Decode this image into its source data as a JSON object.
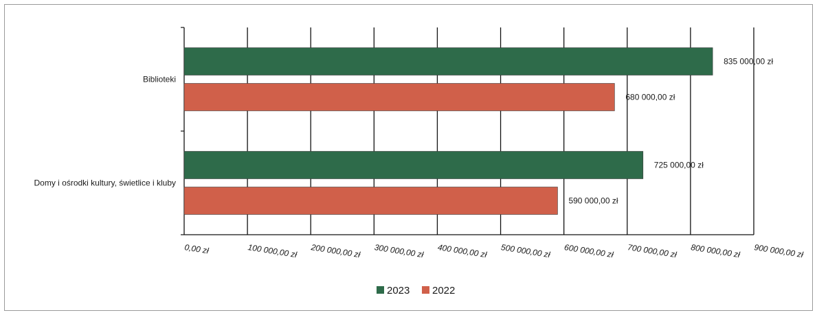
{
  "chart_data": {
    "type": "bar",
    "orientation": "horizontal",
    "categories": [
      "Biblioteki",
      "Domy i ośrodki kultury, świetlice i kluby"
    ],
    "series": [
      {
        "name": "2023",
        "color": "#2e6b4a",
        "values": [
          835000,
          725000
        ],
        "labels": [
          "835 000,00 zł",
          "725 000,00 zł"
        ]
      },
      {
        "name": "2022",
        "color": "#d0604a",
        "values": [
          680000,
          590000
        ],
        "labels": [
          "680 000,00 zł",
          "590 000,00 zł"
        ]
      }
    ],
    "xlim": [
      0,
      900000
    ],
    "x_ticks": [
      0,
      100000,
      200000,
      300000,
      400000,
      500000,
      600000,
      700000,
      800000,
      900000
    ],
    "x_tick_labels": [
      "0,00 zł",
      "100 000,00 zł",
      "200 000,00 zł",
      "300 000,00 zł",
      "400 000,00 zł",
      "500 000,00 zł",
      "600 000,00 zł",
      "700 000,00 zł",
      "800 000,00 zł",
      "900 000,00 zł"
    ],
    "grid": "vertical",
    "legend": "bottom-center"
  }
}
